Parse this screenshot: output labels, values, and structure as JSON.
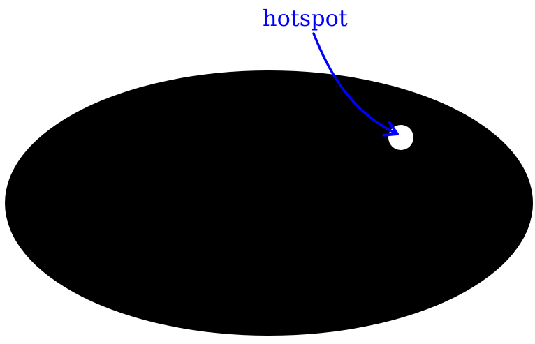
{
  "annotation": {
    "label": "hotspot"
  },
  "colors": {
    "background": "#ffffff",
    "shape": "#000000",
    "hotspot": "#ffffff",
    "annotation": "#0000ff"
  }
}
